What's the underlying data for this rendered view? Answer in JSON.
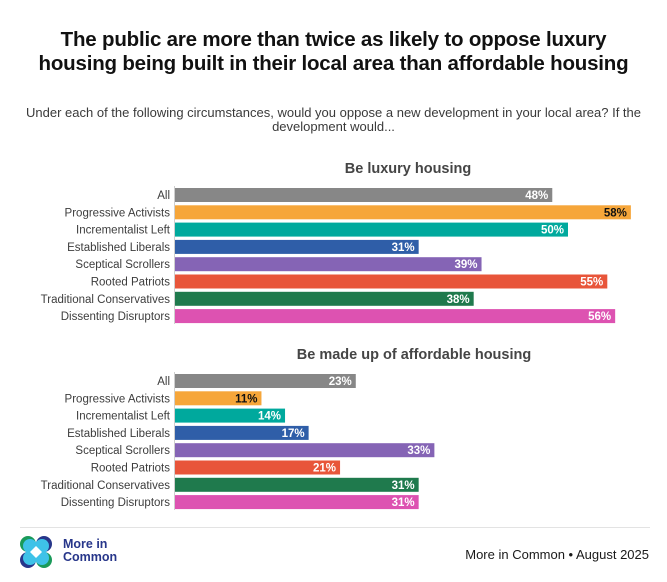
{
  "header": {
    "title": "The public are more than twice as likely to oppose luxury housing being built in their local area than affordable housing",
    "subtitle": "Under each of the following circumstances, would you oppose a new development in your local area? If the development would..."
  },
  "footer": {
    "logo_text_line1": "More in",
    "logo_text_line2": "Common",
    "source": "More in Common • August 2025",
    "logo_icon": "more-in-common-logo"
  },
  "chart_data": [
    {
      "type": "bar",
      "orientation": "horizontal",
      "title": "Be luxury housing",
      "categories": [
        "All",
        "Progressive Activists",
        "Incrementalist Left",
        "Established Liberals",
        "Sceptical Scrollers",
        "Rooted Patriots",
        "Traditional Conservatives",
        "Dissenting Disruptors"
      ],
      "values": [
        48,
        58,
        50,
        31,
        39,
        55,
        38,
        56
      ],
      "value_labels": [
        "48%",
        "58%",
        "50%",
        "31%",
        "39%",
        "55%",
        "38%",
        "56%"
      ],
      "colors": [
        "#878787",
        "#f6a63a",
        "#00a99d",
        "#2f5ea8",
        "#8564b5",
        "#e8553a",
        "#1f7a4d",
        "#dd52b1"
      ],
      "label_colors": [
        "#ffffff",
        "#111111",
        "#ffffff",
        "#ffffff",
        "#ffffff",
        "#ffffff",
        "#ffffff",
        "#ffffff"
      ],
      "unit": "%",
      "xlim": [
        0,
        60
      ],
      "grid": false,
      "legend": "none"
    },
    {
      "type": "bar",
      "orientation": "horizontal",
      "title": "Be made up of affordable housing",
      "categories": [
        "All",
        "Progressive Activists",
        "Incrementalist Left",
        "Established Liberals",
        "Sceptical Scrollers",
        "Rooted Patriots",
        "Traditional Conservatives",
        "Dissenting Disruptors"
      ],
      "values": [
        23,
        11,
        14,
        17,
        33,
        21,
        31,
        31
      ],
      "value_labels": [
        "23%",
        "11%",
        "14%",
        "17%",
        "33%",
        "21%",
        "31%",
        "31%"
      ],
      "colors": [
        "#878787",
        "#f6a63a",
        "#00a99d",
        "#2f5ea8",
        "#8564b5",
        "#e8553a",
        "#1f7a4d",
        "#dd52b1"
      ],
      "label_colors": [
        "#ffffff",
        "#111111",
        "#ffffff",
        "#ffffff",
        "#ffffff",
        "#ffffff",
        "#ffffff",
        "#ffffff"
      ],
      "unit": "%",
      "xlim": [
        0,
        60
      ],
      "grid": false,
      "legend": "none"
    }
  ]
}
